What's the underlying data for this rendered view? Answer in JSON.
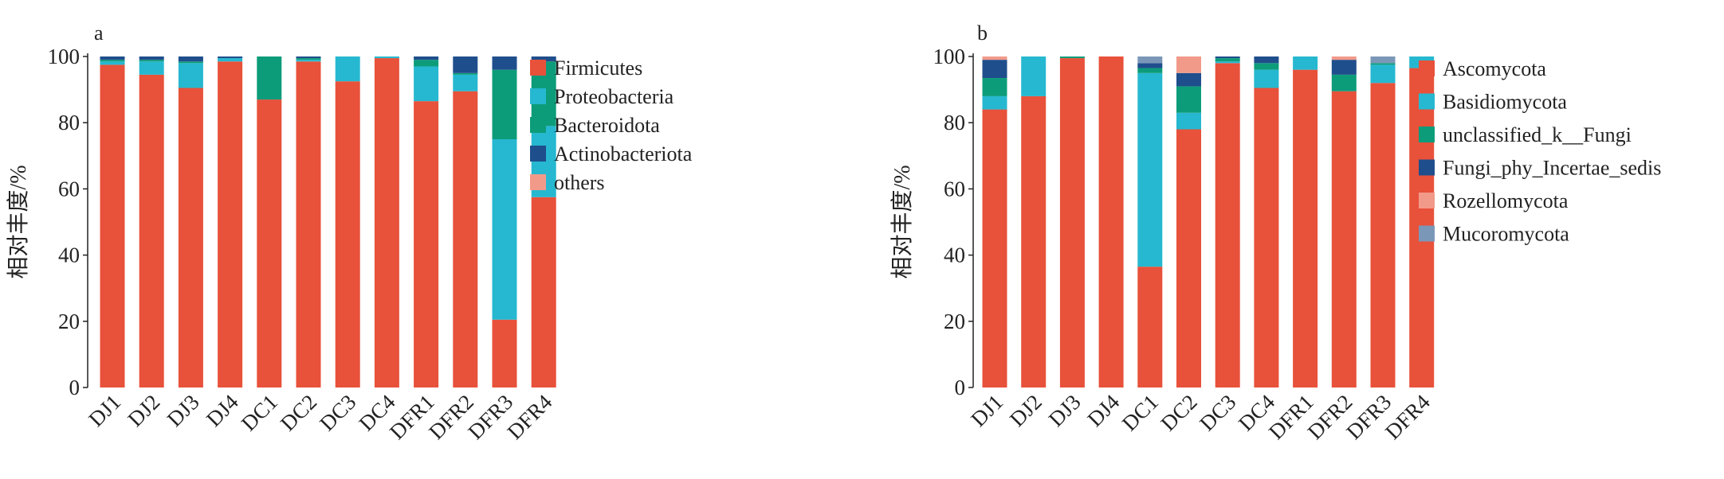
{
  "chart_data": [
    {
      "type": "bar",
      "stacked": true,
      "panel_label": "a",
      "ylabel": "相对丰度/%",
      "ylim": [
        0,
        100
      ],
      "yticks": [
        "0",
        "20",
        "40",
        "60",
        "80",
        "100"
      ],
      "categories": [
        "DJ1",
        "DJ2",
        "DJ3",
        "DJ4",
        "DC1",
        "DC2",
        "DC3",
        "DC4",
        "DFR1",
        "DFR2",
        "DFR3",
        "DFR4"
      ],
      "series": [
        {
          "name": "Firmicutes",
          "color": "#e8513a",
          "values": [
            97.5,
            94.5,
            90.5,
            98.5,
            87,
            98.5,
            92.5,
            99.5,
            86.5,
            89.5,
            20.5,
            57.5
          ]
        },
        {
          "name": "Proteobacteria",
          "color": "#26b8d0",
          "values": [
            1,
            4,
            7.5,
            1,
            0,
            0.5,
            7.5,
            0.5,
            10.5,
            5,
            54.5,
            21.5
          ]
        },
        {
          "name": "Bacteroidota",
          "color": "#0d9c7a",
          "values": [
            0.5,
            0.5,
            0.5,
            0,
            13,
            0.5,
            0,
            0,
            2,
            0.5,
            21,
            19.5
          ]
        },
        {
          "name": "Actinobacteriota",
          "color": "#1f4e8c",
          "values": [
            1,
            1,
            1.5,
            0.5,
            0,
            0.5,
            0,
            0,
            1,
            5,
            4,
            1.5
          ]
        },
        {
          "name": "others",
          "color": "#f29a8a",
          "values": [
            0,
            0,
            0,
            0,
            0,
            0,
            0,
            0,
            0,
            0,
            0,
            0
          ]
        }
      ]
    },
    {
      "type": "bar",
      "stacked": true,
      "panel_label": "b",
      "ylabel": "相对丰度/%",
      "ylim": [
        0,
        100
      ],
      "yticks": [
        "0",
        "20",
        "40",
        "60",
        "80",
        "100"
      ],
      "categories": [
        "DJ1",
        "DJ2",
        "DJ3",
        "DJ4",
        "DC1",
        "DC2",
        "DC3",
        "DC4",
        "DFR1",
        "DFR2",
        "DFR3",
        "DFR4"
      ],
      "series": [
        {
          "name": "Ascomycota",
          "color": "#e8513a",
          "values": [
            84,
            88,
            99.5,
            100,
            36.5,
            78,
            98,
            90.5,
            96,
            89.5,
            92,
            96.5
          ]
        },
        {
          "name": "Basidiomycota",
          "color": "#26b8d0",
          "values": [
            4,
            12,
            0,
            0,
            58.5,
            5,
            0.5,
            5.5,
            4,
            0,
            5.5,
            3.5
          ]
        },
        {
          "name": "unclassified_k__Fungi",
          "color": "#0d9c7a",
          "values": [
            5.5,
            0,
            0.5,
            0,
            1.5,
            8,
            1,
            2,
            0,
            5,
            0.5,
            0
          ]
        },
        {
          "name": "Fungi_phy_Incertae_sedis",
          "color": "#1f4e8c",
          "values": [
            5.5,
            0,
            0,
            0,
            1.5,
            4,
            0.5,
            2,
            0,
            4.5,
            0,
            0
          ]
        },
        {
          "name": "Rozellomycota",
          "color": "#f29a8a",
          "values": [
            1,
            0,
            0,
            0,
            0,
            5,
            0,
            0,
            0,
            1,
            0,
            0
          ]
        },
        {
          "name": "Mucoromycota",
          "color": "#7b97b8",
          "values": [
            0,
            0,
            0,
            0,
            2,
            0,
            0,
            0,
            0,
            0,
            2,
            0
          ]
        }
      ]
    }
  ]
}
